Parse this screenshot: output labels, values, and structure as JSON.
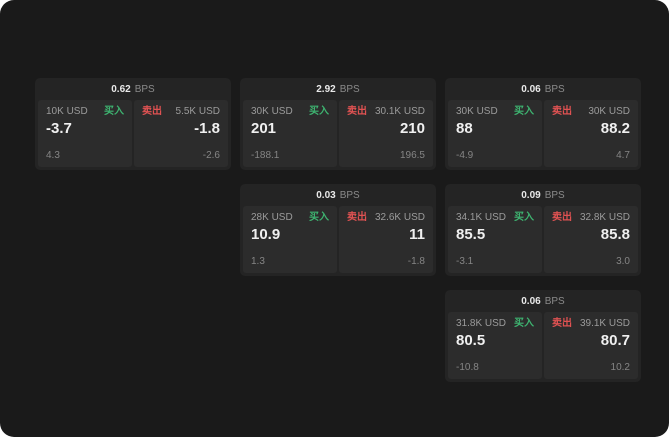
{
  "theme": {
    "background": "#1a1a1a",
    "card_bg": "#242424",
    "panel_bg": "#2c2c2c",
    "buy_color": "#3eb370",
    "sell_color": "#e05252"
  },
  "labels": {
    "bps": "BPS",
    "buy": "买入",
    "sell": "卖出"
  },
  "cards": [
    {
      "row": 1,
      "col": 1,
      "bps": "0.62",
      "buy": {
        "amount": "10K USD",
        "price": "-3.7",
        "delta": "4.3"
      },
      "sell": {
        "amount": "5.5K USD",
        "price": "-1.8",
        "delta": "-2.6"
      }
    },
    {
      "row": 1,
      "col": 2,
      "bps": "2.92",
      "buy": {
        "amount": "30K USD",
        "price": "201",
        "delta": "-188.1"
      },
      "sell": {
        "amount": "30.1K USD",
        "price": "210",
        "delta": "196.5"
      }
    },
    {
      "row": 1,
      "col": 3,
      "bps": "0.06",
      "buy": {
        "amount": "30K USD",
        "price": "88",
        "delta": "-4.9"
      },
      "sell": {
        "amount": "30K USD",
        "price": "88.2",
        "delta": "4.7"
      }
    },
    {
      "row": 2,
      "col": 2,
      "bps": "0.03",
      "buy": {
        "amount": "28K USD",
        "price": "10.9",
        "delta": "1.3"
      },
      "sell": {
        "amount": "32.6K USD",
        "price": "11",
        "delta": "-1.8"
      }
    },
    {
      "row": 2,
      "col": 3,
      "bps": "0.09",
      "buy": {
        "amount": "34.1K USD",
        "price": "85.5",
        "delta": "-3.1"
      },
      "sell": {
        "amount": "32.8K USD",
        "price": "85.8",
        "delta": "3.0"
      }
    },
    {
      "row": 3,
      "col": 3,
      "bps": "0.06",
      "buy": {
        "amount": "31.8K USD",
        "price": "80.5",
        "delta": "-10.8"
      },
      "sell": {
        "amount": "39.1K USD",
        "price": "80.7",
        "delta": "10.2"
      }
    }
  ]
}
